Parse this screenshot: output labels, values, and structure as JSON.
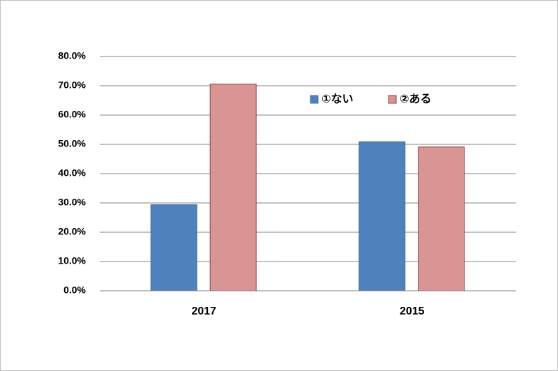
{
  "chart_data": {
    "type": "bar",
    "categories": [
      "2017",
      "2015"
    ],
    "series": [
      {
        "name": "①ない",
        "color": "#4f81bd",
        "values": [
          29.4,
          50.9
        ]
      },
      {
        "name": "②ある",
        "color": "#d99594",
        "values": [
          70.6,
          49.1
        ]
      }
    ],
    "ylim": [
      0,
      80
    ],
    "yticks": [
      {
        "value": 0,
        "label": "0.0%"
      },
      {
        "value": 10,
        "label": "10.0%"
      },
      {
        "value": 20,
        "label": "20.0%"
      },
      {
        "value": 30,
        "label": "30.0%"
      },
      {
        "value": 40,
        "label": "40.0%"
      },
      {
        "value": 50,
        "label": "50.0%"
      },
      {
        "value": 60,
        "label": "60.0%"
      },
      {
        "value": 70,
        "label": "70.0%"
      },
      {
        "value": 80,
        "label": "80.0%"
      }
    ],
    "grid": true,
    "legend": "top-right"
  }
}
